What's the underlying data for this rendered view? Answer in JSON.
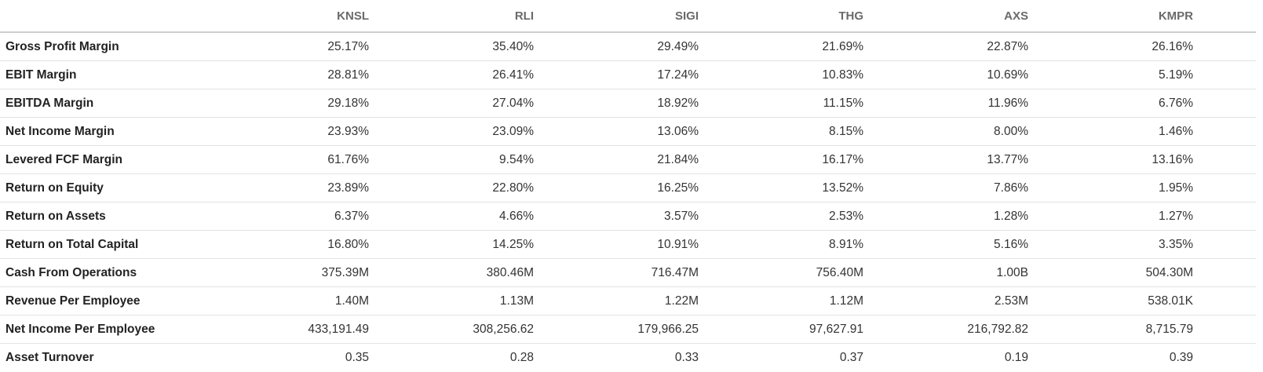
{
  "table": {
    "columns": [
      "KNSL",
      "RLI",
      "SIGI",
      "THG",
      "AXS",
      "KMPR"
    ],
    "rows": [
      {
        "label": "Gross Profit Margin",
        "values": [
          "25.17%",
          "35.40%",
          "29.49%",
          "21.69%",
          "22.87%",
          "26.16%"
        ]
      },
      {
        "label": "EBIT Margin",
        "values": [
          "28.81%",
          "26.41%",
          "17.24%",
          "10.83%",
          "10.69%",
          "5.19%"
        ]
      },
      {
        "label": "EBITDA Margin",
        "values": [
          "29.18%",
          "27.04%",
          "18.92%",
          "11.15%",
          "11.96%",
          "6.76%"
        ]
      },
      {
        "label": "Net Income Margin",
        "values": [
          "23.93%",
          "23.09%",
          "13.06%",
          "8.15%",
          "8.00%",
          "1.46%"
        ]
      },
      {
        "label": "Levered FCF Margin",
        "values": [
          "61.76%",
          "9.54%",
          "21.84%",
          "16.17%",
          "13.77%",
          "13.16%"
        ]
      },
      {
        "label": "Return on Equity",
        "values": [
          "23.89%",
          "22.80%",
          "16.25%",
          "13.52%",
          "7.86%",
          "1.95%"
        ]
      },
      {
        "label": "Return on Assets",
        "values": [
          "6.37%",
          "4.66%",
          "3.57%",
          "2.53%",
          "1.28%",
          "1.27%"
        ]
      },
      {
        "label": "Return on Total Capital",
        "values": [
          "16.80%",
          "14.25%",
          "10.91%",
          "8.91%",
          "5.16%",
          "3.35%"
        ]
      },
      {
        "label": "Cash From Operations",
        "values": [
          "375.39M",
          "380.46M",
          "716.47M",
          "756.40M",
          "1.00B",
          "504.30M"
        ]
      },
      {
        "label": "Revenue Per Employee",
        "values": [
          "1.40M",
          "1.13M",
          "1.22M",
          "1.12M",
          "2.53M",
          "538.01K"
        ]
      },
      {
        "label": "Net Income Per Employee",
        "values": [
          "433,191.49",
          "308,256.62",
          "179,966.25",
          "97,627.91",
          "216,792.82",
          "8,715.79"
        ]
      },
      {
        "label": "Asset Turnover",
        "values": [
          "0.35",
          "0.28",
          "0.33",
          "0.37",
          "0.19",
          "0.39"
        ]
      }
    ]
  }
}
